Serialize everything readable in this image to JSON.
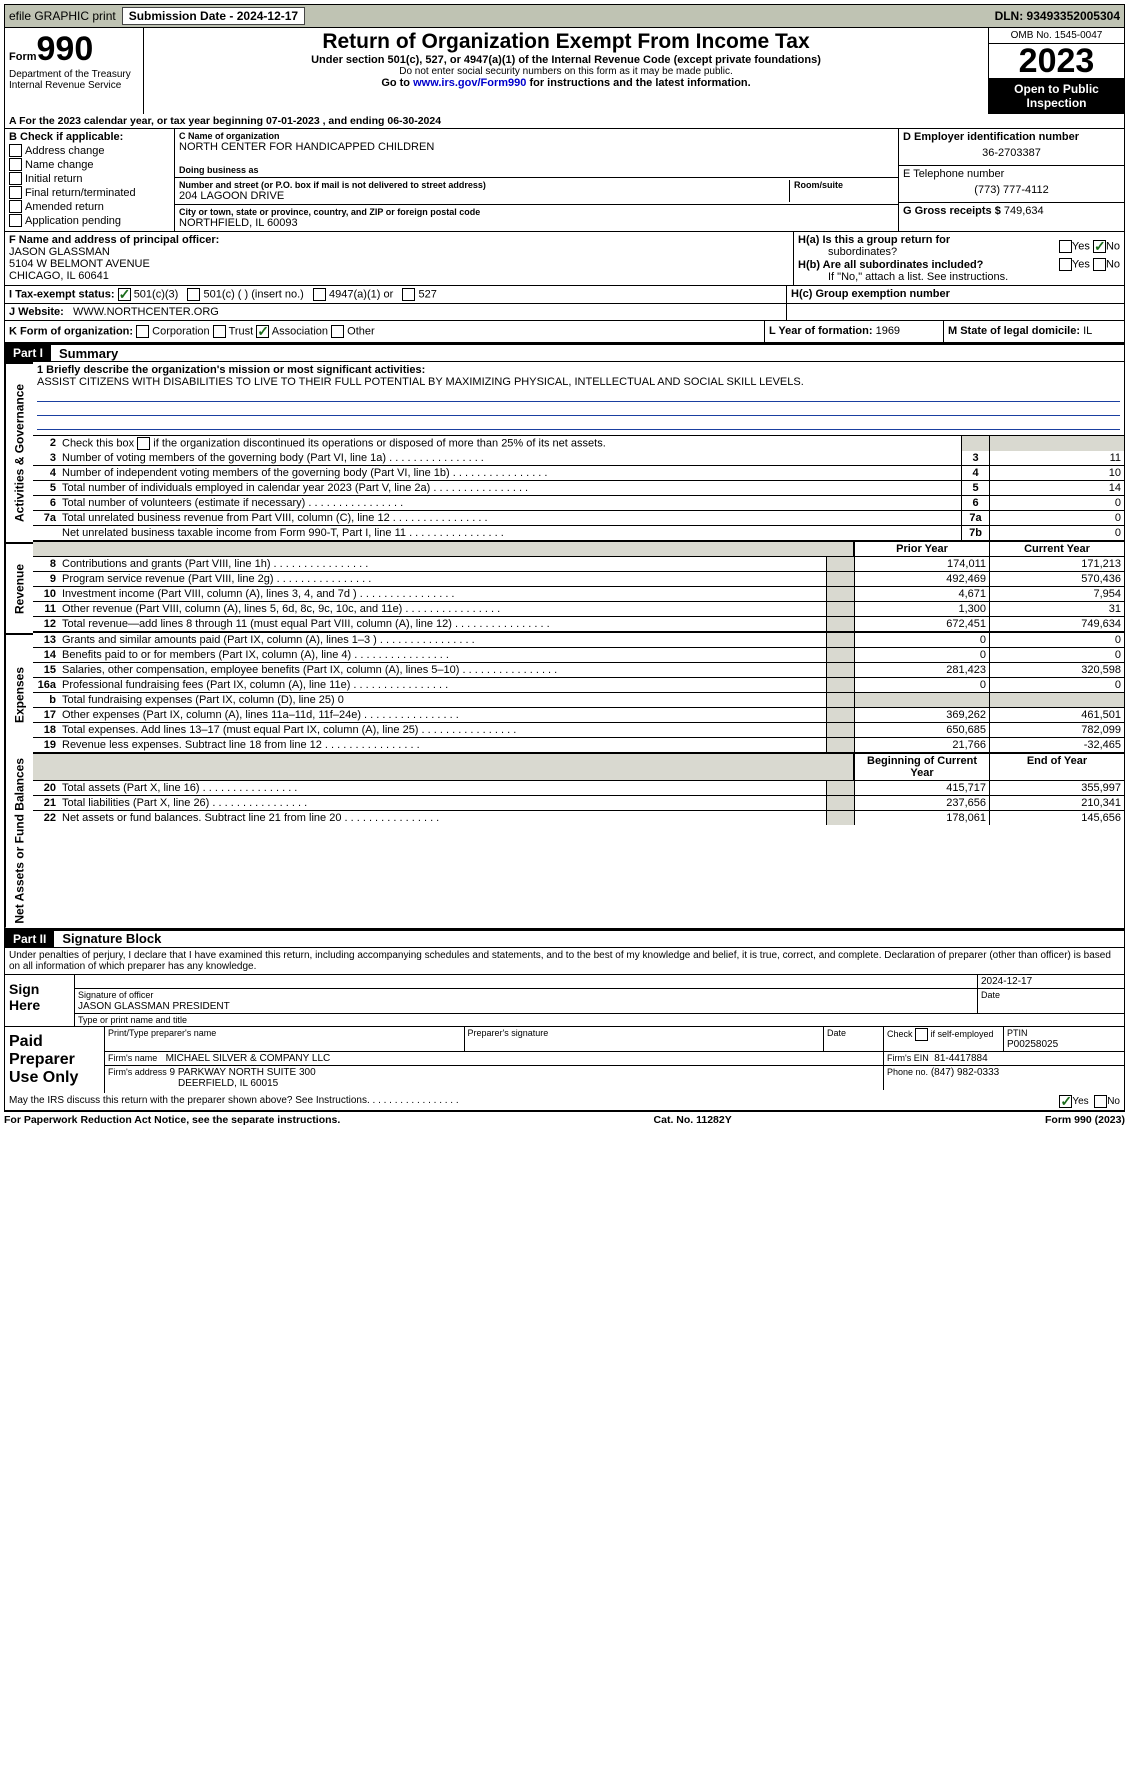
{
  "topbar": {
    "efile": "efile GRAPHIC print",
    "sub_label": "Submission Date - 2024-12-17",
    "dln": "DLN: 93493352005304"
  },
  "header": {
    "form_prefix": "Form",
    "form_num": "990",
    "dept": "Department of the Treasury",
    "irs": "Internal Revenue Service",
    "title": "Return of Organization Exempt From Income Tax",
    "subtitle": "Under section 501(c), 527, or 4947(a)(1) of the Internal Revenue Code (except private foundations)",
    "note": "Do not enter social security numbers on this form as it may be made public.",
    "goto_pre": "Go to ",
    "goto_link": "www.irs.gov/Form990",
    "goto_post": " for instructions and the latest information.",
    "omb": "OMB No. 1545-0047",
    "year": "2023",
    "open": "Open to Public Inspection"
  },
  "calyear": "For the 2023 calendar year, or tax year beginning 07-01-2023   , and ending 06-30-2024",
  "B": {
    "hdr": "B Check if applicable:",
    "opts": [
      "Address change",
      "Name change",
      "Initial return",
      "Final return/terminated",
      "Amended return",
      "Application pending"
    ]
  },
  "C": {
    "name_lbl": "C Name of organization",
    "name": "NORTH CENTER FOR HANDICAPPED CHILDREN",
    "dba_lbl": "Doing business as",
    "street_lbl": "Number and street (or P.O. box if mail is not delivered to street address)",
    "street": "204 LAGOON DRIVE",
    "room_lbl": "Room/suite",
    "city_lbl": "City or town, state or province, country, and ZIP or foreign postal code",
    "city": "NORTHFIELD, IL  60093"
  },
  "D": {
    "ein_lbl": "D Employer identification number",
    "ein": "36-2703387",
    "tel_lbl": "E Telephone number",
    "tel": "(773) 777-4112",
    "gross_lbl": "G Gross receipts $",
    "gross": "749,634"
  },
  "F": {
    "lbl": "F  Name and address of principal officer:",
    "name": "JASON GLASSMAN",
    "addr1": "5104 W BELMONT AVENUE",
    "addr2": "CHICAGO, IL  60641"
  },
  "H": {
    "a1": "H(a)  Is this a group return for",
    "a2": "subordinates?",
    "b1": "H(b)  Are all subordinates included?",
    "b2": "If \"No,\" attach a list. See instructions.",
    "c": "H(c)  Group exemption number",
    "yes": "Yes",
    "no": "No"
  },
  "I": {
    "lbl": "I   Tax-exempt status:",
    "o1": "501(c)(3)",
    "o2": "501(c) (  ) (insert no.)",
    "o3": "4947(a)(1) or",
    "o4": "527"
  },
  "J": {
    "lbl": "J   Website:",
    "val": "WWW.NORTHCENTER.ORG"
  },
  "K": {
    "lbl": "K Form of organization:",
    "o1": "Corporation",
    "o2": "Trust",
    "o3": "Association",
    "o4": "Other"
  },
  "L": {
    "lbl": "L Year of formation:",
    "val": "1969"
  },
  "M": {
    "lbl": "M State of legal domicile:",
    "val": "IL"
  },
  "part1": {
    "label": "Part I",
    "title": "Summary"
  },
  "mission": {
    "lbl": "1  Briefly describe the organization's mission or most significant activities:",
    "text": "ASSIST CITIZENS WITH DISABILITIES TO LIVE TO THEIR FULL POTENTIAL BY MAXIMIZING PHYSICAL, INTELLECTUAL AND SOCIAL SKILL LEVELS."
  },
  "line2": "Check this box       if the organization discontinued its operations or disposed of more than 25% of its net assets.",
  "sides": {
    "gov": "Activities & Governance",
    "rev": "Revenue",
    "exp": "Expenses",
    "net": "Net Assets or Fund Balances"
  },
  "cols": {
    "prior": "Prior Year",
    "current": "Current Year",
    "begin": "Beginning of Current Year",
    "end": "End of Year"
  },
  "gov_lines": [
    {
      "n": "3",
      "d": "Number of voting members of the governing body (Part VI, line 1a)",
      "box": "3",
      "v": "11"
    },
    {
      "n": "4",
      "d": "Number of independent voting members of the governing body (Part VI, line 1b)",
      "box": "4",
      "v": "10"
    },
    {
      "n": "5",
      "d": "Total number of individuals employed in calendar year 2023 (Part V, line 2a)",
      "box": "5",
      "v": "14"
    },
    {
      "n": "6",
      "d": "Total number of volunteers (estimate if necessary)",
      "box": "6",
      "v": "0"
    },
    {
      "n": "7a",
      "d": "Total unrelated business revenue from Part VIII, column (C), line 12",
      "box": "7a",
      "v": "0"
    },
    {
      "n": "",
      "d": "Net unrelated business taxable income from Form 990-T, Part I, line 11",
      "box": "7b",
      "v": "0"
    }
  ],
  "rev_lines": [
    {
      "n": "8",
      "d": "Contributions and grants (Part VIII, line 1h)",
      "p": "174,011",
      "c": "171,213"
    },
    {
      "n": "9",
      "d": "Program service revenue (Part VIII, line 2g)",
      "p": "492,469",
      "c": "570,436"
    },
    {
      "n": "10",
      "d": "Investment income (Part VIII, column (A), lines 3, 4, and 7d )",
      "p": "4,671",
      "c": "7,954"
    },
    {
      "n": "11",
      "d": "Other revenue (Part VIII, column (A), lines 5, 6d, 8c, 9c, 10c, and 11e)",
      "p": "1,300",
      "c": "31"
    },
    {
      "n": "12",
      "d": "Total revenue—add lines 8 through 11 (must equal Part VIII, column (A), line 12)",
      "p": "672,451",
      "c": "749,634"
    }
  ],
  "exp_lines": [
    {
      "n": "13",
      "d": "Grants and similar amounts paid (Part IX, column (A), lines 1–3 )",
      "p": "0",
      "c": "0"
    },
    {
      "n": "14",
      "d": "Benefits paid to or for members (Part IX, column (A), line 4)",
      "p": "0",
      "c": "0"
    },
    {
      "n": "15",
      "d": "Salaries, other compensation, employee benefits (Part IX, column (A), lines 5–10)",
      "p": "281,423",
      "c": "320,598"
    },
    {
      "n": "16a",
      "d": "Professional fundraising fees (Part IX, column (A), line 11e)",
      "p": "0",
      "c": "0"
    },
    {
      "n": "b",
      "d": "Total fundraising expenses (Part IX, column (D), line 25) 0",
      "p": "",
      "c": "",
      "shade": true
    },
    {
      "n": "17",
      "d": "Other expenses (Part IX, column (A), lines 11a–11d, 11f–24e)",
      "p": "369,262",
      "c": "461,501"
    },
    {
      "n": "18",
      "d": "Total expenses. Add lines 13–17 (must equal Part IX, column (A), line 25)",
      "p": "650,685",
      "c": "782,099"
    },
    {
      "n": "19",
      "d": "Revenue less expenses. Subtract line 18 from line 12",
      "p": "21,766",
      "c": "-32,465"
    }
  ],
  "net_lines": [
    {
      "n": "20",
      "d": "Total assets (Part X, line 16)",
      "p": "415,717",
      "c": "355,997"
    },
    {
      "n": "21",
      "d": "Total liabilities (Part X, line 26)",
      "p": "237,656",
      "c": "210,341"
    },
    {
      "n": "22",
      "d": "Net assets or fund balances. Subtract line 21 from line 20",
      "p": "178,061",
      "c": "145,656"
    }
  ],
  "part2": {
    "label": "Part II",
    "title": "Signature Block"
  },
  "sig": {
    "declare": "Under penalties of perjury, I declare that I have examined this return, including accompanying schedules and statements, and to the best of my knowledge and belief, it is true, correct, and complete. Declaration of preparer (other than officer) is based on all information of which preparer has any knowledge.",
    "sign_here": "Sign Here",
    "sig_of": "Signature of officer",
    "date_lbl": "Date",
    "sig_date": "2024-12-17",
    "officer": "JASON GLASSMAN PRESIDENT",
    "type_name": "Type or print name and title",
    "paid": "Paid Preparer Use Only",
    "print_lbl": "Print/Type preparer's name",
    "prep_sig_lbl": "Preparer's signature",
    "check_self": "Check       if self-employed",
    "ptin_lbl": "PTIN",
    "ptin": "P00258025",
    "firm_name_lbl": "Firm's name",
    "firm_name": "MICHAEL SILVER & COMPANY LLC",
    "firm_ein_lbl": "Firm's EIN",
    "firm_ein": "81-4417884",
    "firm_addr_lbl": "Firm's address",
    "firm_addr1": "9 PARKWAY NORTH SUITE 300",
    "firm_addr2": "DEERFIELD, IL  60015",
    "phone_lbl": "Phone no.",
    "phone": "(847) 982-0333",
    "irs_q": "May the IRS discuss this return with the preparer shown above? See Instructions."
  },
  "footer": {
    "pra": "For Paperwork Reduction Act Notice, see the separate instructions.",
    "cat": "Cat. No. 11282Y",
    "form": "Form 990 (2023)"
  }
}
